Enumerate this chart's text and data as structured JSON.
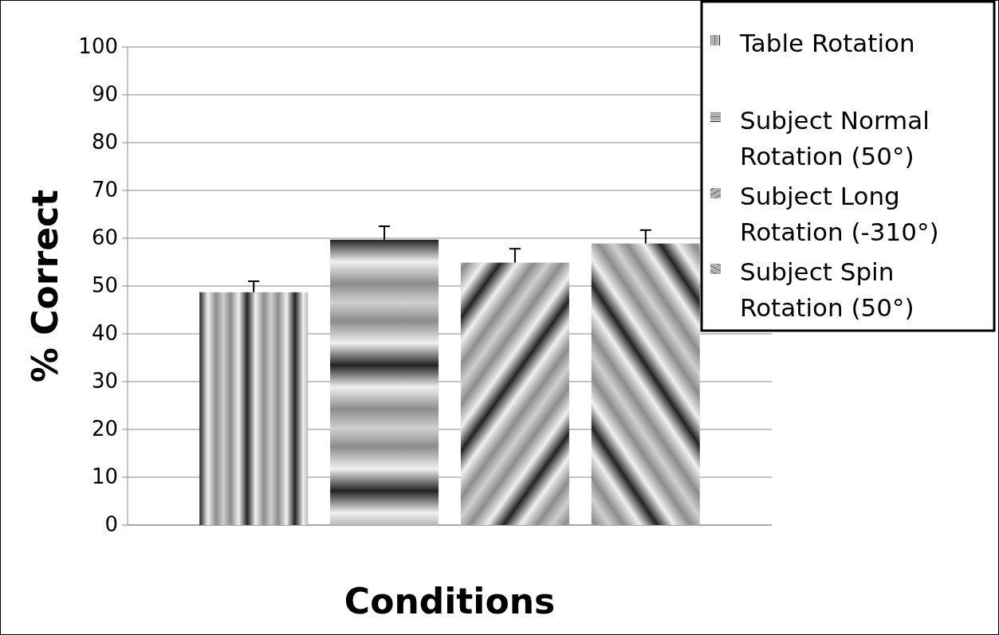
{
  "chart_data": {
    "type": "bar",
    "xlabel": "Conditions",
    "ylabel": "% Correct",
    "categories": [
      null
    ],
    "series": [
      {
        "name": "Table Rotation",
        "color": "#8c8c8c",
        "values": [
          48.7
        ],
        "errors": [
          [
            48.7,
            51
          ]
        ]
      },
      {
        "name": "Subject Normal Rotation (50°)",
        "color": "#8c8c8c",
        "values": [
          59.7
        ],
        "errors": [
          [
            59.7,
            62.5
          ]
        ]
      },
      {
        "name": "Subject Long Rotation (-310°)",
        "color": "#8c8c8c",
        "values": [
          54.9
        ],
        "errors": [
          [
            54.9,
            57.8
          ]
        ]
      },
      {
        "name": "Subject Spin Rotation (50°)",
        "color": "#8c8c8c",
        "values": [
          58.9
        ],
        "errors": [
          [
            58.9,
            61.7
          ]
        ]
      }
    ],
    "ylim": [
      0,
      100
    ],
    "yticks": [
      0,
      10,
      20,
      30,
      40,
      50,
      60,
      70,
      80,
      90,
      100
    ],
    "grid": "y",
    "legend": "right"
  }
}
